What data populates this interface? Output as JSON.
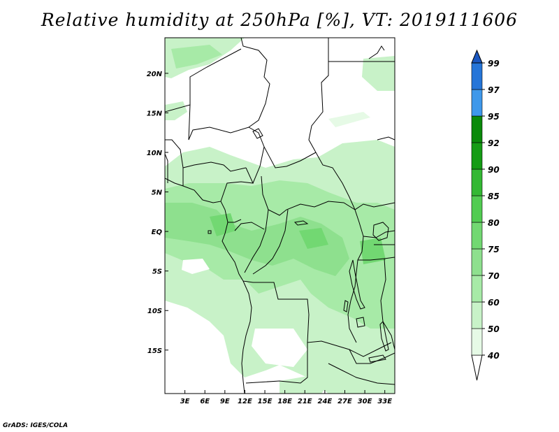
{
  "title": "Relative humidity at 250hPa [%], VT: 2019111606",
  "credit": "GrADS: IGES/COLA",
  "map": {
    "lon_range": [
      0,
      34.5
    ],
    "lat_range": [
      -20.5,
      24.5
    ],
    "lon_ticks": [
      {
        "value": 3,
        "label": "3E"
      },
      {
        "value": 6,
        "label": "6E"
      },
      {
        "value": 9,
        "label": "9E"
      },
      {
        "value": 12,
        "label": "12E"
      },
      {
        "value": 15,
        "label": "15E"
      },
      {
        "value": 18,
        "label": "18E"
      },
      {
        "value": 21,
        "label": "21E"
      },
      {
        "value": 24,
        "label": "24E"
      },
      {
        "value": 27,
        "label": "27E"
      },
      {
        "value": 30,
        "label": "30E"
      },
      {
        "value": 33,
        "label": "33E"
      }
    ],
    "lat_ticks": [
      {
        "value": 20,
        "label": "20N"
      },
      {
        "value": 15,
        "label": "15N"
      },
      {
        "value": 10,
        "label": "10N"
      },
      {
        "value": 5,
        "label": "5N"
      },
      {
        "value": 0,
        "label": "EQ"
      },
      {
        "value": -5,
        "label": "5S"
      },
      {
        "value": -10,
        "label": "10S"
      },
      {
        "value": -15,
        "label": "15S"
      }
    ]
  },
  "colorbar": {
    "levels": [
      "40",
      "50",
      "60",
      "70",
      "75",
      "80",
      "85",
      "90",
      "92",
      "95",
      "97",
      "99"
    ],
    "colors": [
      "#ffffff",
      "#e6fae6",
      "#c8f2c8",
      "#a7eaa7",
      "#8ee08e",
      "#72d872",
      "#52cc52",
      "#33b833",
      "#159c15",
      "#0a8a0a",
      "#3e98ea",
      "#2575d8",
      "#1a57c0"
    ]
  }
}
